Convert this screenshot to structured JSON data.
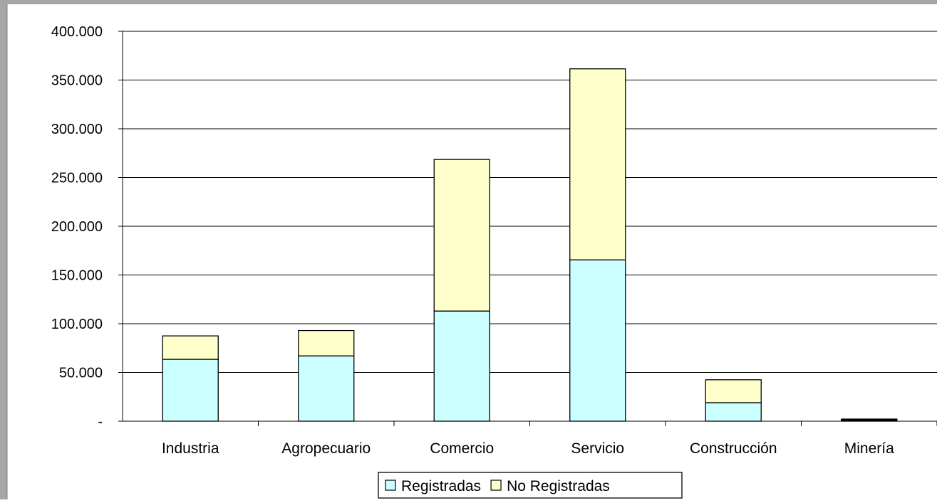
{
  "chart_data": {
    "type": "bar",
    "stacked": true,
    "categories": [
      "Industria",
      "Agropecuario",
      "Comercio",
      "Servicio",
      "Construcción",
      "Minería"
    ],
    "series": [
      {
        "name": "Registradas",
        "color": "#ccffff",
        "values": [
          63500,
          67000,
          113000,
          165500,
          19000,
          1500
        ]
      },
      {
        "name": "No Registradas",
        "color": "#ffffcc",
        "values": [
          24000,
          26000,
          155500,
          196000,
          23500,
          0
        ]
      }
    ],
    "y_ticks": [
      0,
      50000,
      100000,
      150000,
      200000,
      250000,
      300000,
      350000,
      400000
    ],
    "y_tick_labels": [
      "-",
      "50.000",
      "100.000",
      "150.000",
      "200.000",
      "250.000",
      "300.000",
      "350.000",
      "400.000"
    ],
    "ylim": [
      0,
      400000
    ],
    "grid": true,
    "legend_position": "bottom-center",
    "title": "",
    "xlabel": "",
    "ylabel": ""
  }
}
